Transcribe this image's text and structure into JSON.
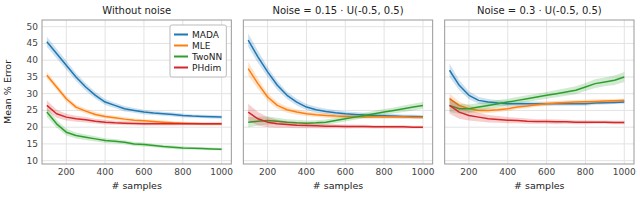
{
  "chart_data": [
    {
      "type": "line",
      "title": "Without noise",
      "xlabel": "# samples",
      "ylabel": "Mean % Error",
      "x": [
        100,
        150,
        200,
        250,
        300,
        350,
        400,
        450,
        500,
        550,
        600,
        650,
        700,
        750,
        800,
        850,
        900,
        950,
        1000
      ],
      "xlim": [
        75,
        1050
      ],
      "xticks": [
        200,
        400,
        600,
        800,
        1000
      ],
      "ylim": [
        9,
        52
      ],
      "yticks": [
        10,
        15,
        20,
        25,
        30,
        35,
        40,
        45,
        50
      ],
      "grid": true,
      "legend": "upper right",
      "series": [
        {
          "name": "MADA",
          "color": "#1f77b4",
          "values": [
            45.5,
            42.0,
            38.5,
            35.0,
            32.0,
            29.5,
            27.5,
            26.5,
            25.5,
            25.0,
            24.5,
            24.2,
            24.0,
            23.8,
            23.5,
            23.3,
            23.2,
            23.1,
            23.0
          ],
          "errors": [
            1.5,
            1.4,
            1.3,
            1.2,
            1.1,
            1.0,
            0.9,
            0.8,
            0.8,
            0.7,
            0.7,
            0.6,
            0.6,
            0.6,
            0.6,
            0.5,
            0.5,
            0.5,
            0.5
          ]
        },
        {
          "name": "MLE",
          "color": "#ff7f0e",
          "values": [
            35.5,
            32.0,
            28.5,
            26.0,
            24.8,
            23.8,
            23.2,
            22.8,
            22.4,
            22.1,
            21.9,
            21.7,
            21.5,
            21.3,
            21.2,
            21.1,
            21.0,
            21.0,
            21.0
          ],
          "errors": [
            1.0,
            0.9,
            0.9,
            0.8,
            0.7,
            0.7,
            0.6,
            0.6,
            0.6,
            0.5,
            0.5,
            0.5,
            0.5,
            0.5,
            0.4,
            0.4,
            0.4,
            0.4,
            0.4
          ]
        },
        {
          "name": "TwoNN",
          "color": "#2ca02c",
          "values": [
            24.5,
            21.0,
            18.5,
            17.5,
            17.0,
            16.5,
            16.0,
            15.8,
            15.5,
            15.0,
            14.8,
            14.5,
            14.2,
            14.0,
            13.8,
            13.7,
            13.6,
            13.5,
            13.4
          ],
          "errors": [
            1.5,
            1.2,
            1.0,
            0.9,
            0.8,
            0.8,
            0.7,
            0.7,
            0.6,
            0.6,
            0.6,
            0.5,
            0.5,
            0.5,
            0.5,
            0.4,
            0.4,
            0.4,
            0.4
          ]
        },
        {
          "name": "PHdim",
          "color": "#d62728",
          "values": [
            26.5,
            24.0,
            23.0,
            22.5,
            22.2,
            21.8,
            21.5,
            21.3,
            21.2,
            21.1,
            21.0,
            21.0,
            21.0,
            21.0,
            21.0,
            21.0,
            21.0,
            21.0,
            21.0
          ],
          "errors": [
            1.5,
            1.2,
            1.0,
            0.9,
            0.8,
            0.7,
            0.7,
            0.6,
            0.6,
            0.5,
            0.5,
            0.5,
            0.5,
            0.5,
            0.4,
            0.4,
            0.4,
            0.4,
            0.4
          ]
        }
      ]
    },
    {
      "type": "line",
      "title": "Noise = 0.15 ⋅ U(-0.5, 0.5)",
      "xlabel": "# samples",
      "x": [
        100,
        150,
        200,
        250,
        300,
        350,
        400,
        450,
        500,
        550,
        600,
        650,
        700,
        750,
        800,
        850,
        900,
        950,
        1000
      ],
      "xlim": [
        75,
        1050
      ],
      "xticks": [
        200,
        400,
        600,
        800,
        1000
      ],
      "ylim": [
        9,
        52
      ],
      "yticks": [
        10,
        15,
        20,
        25,
        30,
        35,
        40,
        45,
        50
      ],
      "grid": true,
      "legend": false,
      "tick_labels": "x",
      "series": [
        {
          "name": "MADA",
          "color": "#1f77b4",
          "values": [
            46.0,
            41.0,
            36.5,
            32.5,
            29.5,
            27.5,
            26.0,
            25.2,
            24.7,
            24.3,
            24.0,
            23.8,
            23.6,
            23.5,
            23.4,
            23.3,
            23.2,
            23.2,
            23.1
          ],
          "errors": [
            2.0,
            1.8,
            1.5,
            1.3,
            1.1,
            1.0,
            0.9,
            0.9,
            0.8,
            0.8,
            0.7,
            0.7,
            0.7,
            0.6,
            0.6,
            0.6,
            0.6,
            0.5,
            0.5
          ]
        },
        {
          "name": "MLE",
          "color": "#ff7f0e",
          "values": [
            37.5,
            33.0,
            29.0,
            26.5,
            25.2,
            24.5,
            24.0,
            23.7,
            23.5,
            23.3,
            23.2,
            23.1,
            23.0,
            23.0,
            23.0,
            23.0,
            23.0,
            22.9,
            22.9
          ],
          "errors": [
            2.0,
            1.5,
            1.2,
            1.0,
            0.9,
            0.8,
            0.7,
            0.7,
            0.7,
            0.6,
            0.6,
            0.6,
            0.5,
            0.5,
            0.5,
            0.5,
            0.5,
            0.4,
            0.4
          ]
        },
        {
          "name": "TwoNN",
          "color": "#2ca02c",
          "values": [
            21.5,
            21.8,
            22.0,
            21.8,
            21.5,
            21.3,
            21.2,
            21.3,
            21.5,
            22.0,
            22.5,
            23.0,
            23.5,
            24.0,
            24.5,
            25.0,
            25.5,
            26.0,
            26.5
          ],
          "errors": [
            1.5,
            1.3,
            1.2,
            1.0,
            0.9,
            0.9,
            0.8,
            0.8,
            0.8,
            0.8,
            0.8,
            0.8,
            0.8,
            0.9,
            0.9,
            0.9,
            1.0,
            1.0,
            1.0
          ]
        },
        {
          "name": "PHdim",
          "color": "#d62728",
          "values": [
            24.5,
            22.5,
            21.5,
            21.0,
            20.8,
            20.6,
            20.5,
            20.4,
            20.3,
            20.3,
            20.2,
            20.2,
            20.2,
            20.1,
            20.1,
            20.1,
            20.1,
            20.0,
            20.0
          ],
          "errors": [
            2.5,
            2.0,
            1.5,
            1.2,
            1.0,
            0.9,
            0.8,
            0.7,
            0.7,
            0.6,
            0.6,
            0.5,
            0.5,
            0.5,
            0.5,
            0.5,
            0.5,
            0.4,
            0.4
          ]
        }
      ]
    },
    {
      "type": "line",
      "title": "Noise = 0.3 ⋅ U(-0.5, 0.5)",
      "xlabel": "# samples",
      "x": [
        100,
        150,
        200,
        250,
        300,
        350,
        400,
        450,
        500,
        550,
        600,
        650,
        700,
        750,
        800,
        850,
        900,
        950,
        1000
      ],
      "xlim": [
        75,
        1050
      ],
      "xticks": [
        200,
        400,
        600,
        800,
        1000
      ],
      "ylim": [
        9,
        52
      ],
      "yticks": [
        10,
        15,
        20,
        25,
        30,
        35,
        40,
        45,
        50
      ],
      "grid": true,
      "legend": false,
      "tick_labels": "x",
      "series": [
        {
          "name": "MADA",
          "color": "#1f77b4",
          "values": [
            37.0,
            32.5,
            29.5,
            28.0,
            27.5,
            27.2,
            27.0,
            27.0,
            27.0,
            27.0,
            27.0,
            27.0,
            27.0,
            27.0,
            27.0,
            27.2,
            27.3,
            27.4,
            27.5
          ],
          "errors": [
            2.0,
            1.5,
            1.2,
            1.0,
            0.9,
            0.8,
            0.8,
            0.7,
            0.7,
            0.7,
            0.6,
            0.6,
            0.6,
            0.6,
            0.6,
            0.5,
            0.5,
            0.5,
            0.5
          ]
        },
        {
          "name": "MLE",
          "color": "#ff7f0e",
          "values": [
            28.5,
            26.5,
            25.5,
            25.0,
            25.0,
            25.2,
            25.5,
            26.0,
            26.3,
            26.7,
            27.0,
            27.2,
            27.4,
            27.5,
            27.6,
            27.7,
            27.8,
            27.9,
            28.0
          ],
          "errors": [
            1.5,
            1.2,
            1.0,
            0.9,
            0.8,
            0.7,
            0.7,
            0.6,
            0.6,
            0.6,
            0.6,
            0.6,
            0.6,
            0.6,
            0.6,
            0.6,
            0.6,
            0.5,
            0.5
          ]
        },
        {
          "name": "TwoNN",
          "color": "#2ca02c",
          "values": [
            26.5,
            25.5,
            25.5,
            26.0,
            26.5,
            27.0,
            27.5,
            28.0,
            28.5,
            29.0,
            29.5,
            30.0,
            30.5,
            31.0,
            32.0,
            33.0,
            33.5,
            34.0,
            35.0
          ],
          "errors": [
            2.0,
            1.5,
            1.3,
            1.2,
            1.1,
            1.1,
            1.0,
            1.0,
            1.0,
            1.0,
            1.0,
            1.1,
            1.1,
            1.2,
            1.2,
            1.3,
            1.3,
            1.4,
            1.5
          ]
        },
        {
          "name": "PHdim",
          "color": "#d62728",
          "values": [
            26.5,
            24.5,
            23.5,
            23.0,
            22.5,
            22.3,
            22.1,
            22.0,
            21.8,
            21.7,
            21.7,
            21.6,
            21.6,
            21.5,
            21.5,
            21.5,
            21.5,
            21.4,
            21.4
          ],
          "errors": [
            2.5,
            2.0,
            1.5,
            1.3,
            1.1,
            1.0,
            0.9,
            0.8,
            0.8,
            0.7,
            0.7,
            0.7,
            0.6,
            0.6,
            0.6,
            0.5,
            0.5,
            0.5,
            0.5
          ]
        }
      ]
    }
  ]
}
